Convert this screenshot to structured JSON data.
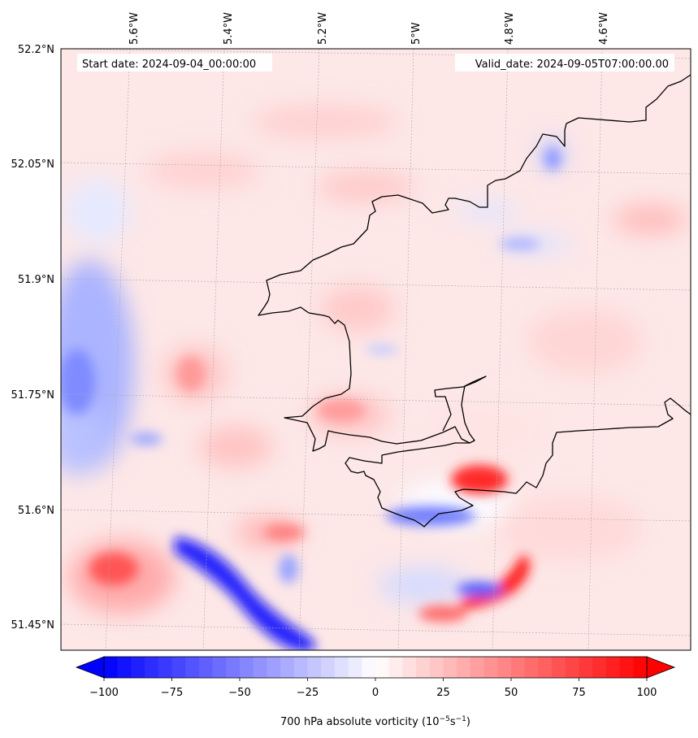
{
  "map": {
    "start_label": "Start date: 2024-09-04_00:00:00",
    "valid_label": "Valid_date: 2024-09-05T07:00:00.00",
    "lon_ticks": [
      "5.6°W",
      "5.4°W",
      "5.2°W",
      "5°W",
      "4.8°W",
      "4.6°W"
    ],
    "lat_ticks": [
      "52.2°N",
      "52.05°N",
      "51.9°N",
      "51.75°N",
      "51.6°N",
      "51.45°N"
    ],
    "field": "700 hPa absolute vorticity",
    "colormap": "bwr"
  },
  "colorbar": {
    "label_text": "700 hPa absolute vorticity (",
    "label_unit_base": "10",
    "label_unit_exp1": "−5",
    "label_unit_s": "s",
    "label_unit_exp2": "−1",
    "label_close": ")",
    "ticks": [
      "−100",
      "−75",
      "−50",
      "−25",
      "0",
      "25",
      "50",
      "75",
      "100"
    ],
    "min": -100,
    "max": 100,
    "extend": "both",
    "color_low": "#0000ff",
    "color_mid": "#ffffff",
    "color_high": "#ff0000"
  }
}
